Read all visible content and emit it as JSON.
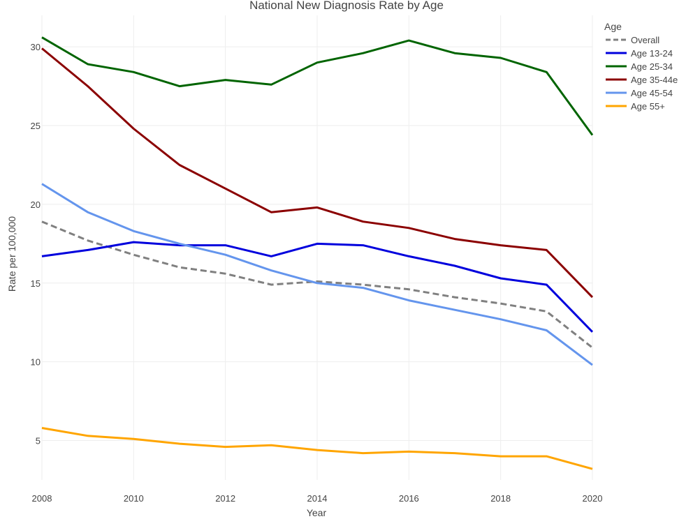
{
  "chart_data": {
    "type": "line",
    "title": "National New Diagnosis Rate by Age",
    "xlabel": "Year",
    "ylabel": "Rate per 100,000",
    "xlim": [
      2008,
      2020
    ],
    "ylim": [
      2.5,
      32
    ],
    "x_ticks": [
      2008,
      2010,
      2012,
      2014,
      2016,
      2018,
      2020
    ],
    "y_ticks": [
      5,
      10,
      15,
      20,
      25,
      30
    ],
    "grid": true,
    "legend": {
      "title": "Age",
      "placement": "top-right"
    },
    "x": [
      2008,
      2009,
      2010,
      2011,
      2012,
      2013,
      2014,
      2015,
      2016,
      2017,
      2018,
      2019,
      2020
    ],
    "series": [
      {
        "name": "Overall",
        "color": "#808080",
        "dash": true,
        "values": [
          18.9,
          17.7,
          16.8,
          16.0,
          15.6,
          14.9,
          15.1,
          14.9,
          14.6,
          14.1,
          13.7,
          13.2,
          10.9
        ]
      },
      {
        "name": "Age 13-24",
        "color": "#0000dd",
        "dash": false,
        "values": [
          16.7,
          17.1,
          17.6,
          17.4,
          17.4,
          16.7,
          17.5,
          17.4,
          16.7,
          16.1,
          15.3,
          14.9,
          11.9
        ]
      },
      {
        "name": "Age 25-34",
        "color": "#006400",
        "dash": false,
        "values": [
          30.6,
          28.9,
          28.4,
          27.5,
          27.9,
          27.6,
          29.0,
          29.6,
          30.4,
          29.6,
          29.3,
          28.4,
          24.4
        ]
      },
      {
        "name": "Age 35-44e",
        "color": "#8b0000",
        "dash": false,
        "values": [
          29.9,
          27.5,
          24.8,
          22.5,
          21.0,
          19.5,
          19.8,
          18.9,
          18.5,
          17.8,
          17.4,
          17.1,
          14.1
        ]
      },
      {
        "name": "Age 45-54",
        "color": "#6495ed",
        "dash": false,
        "values": [
          21.3,
          19.5,
          18.3,
          17.5,
          16.8,
          15.8,
          15.0,
          14.7,
          13.9,
          13.3,
          12.7,
          12.0,
          9.8
        ]
      },
      {
        "name": "Age 55+",
        "color": "#ffa500",
        "dash": false,
        "values": [
          5.8,
          5.3,
          5.1,
          4.8,
          4.6,
          4.7,
          4.4,
          4.2,
          4.3,
          4.2,
          4.0,
          4.0,
          3.2
        ]
      }
    ]
  }
}
